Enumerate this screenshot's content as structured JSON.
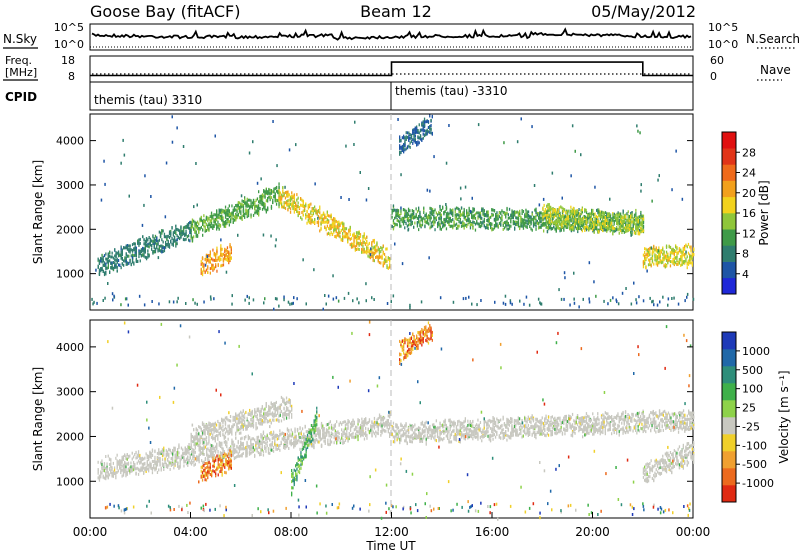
{
  "header": {
    "station": "Goose Bay (fitACF)",
    "beam": "Beam 12",
    "date": "05/May/2012"
  },
  "noise_panel": {
    "left_label": "N.Sky",
    "right_label": "N.Search",
    "left_ticks": [
      "10^5",
      "10^0"
    ],
    "right_ticks": [
      "10^5",
      "10^0"
    ]
  },
  "freq_panel": {
    "left_label_line1": "Freq.",
    "left_label_line2": "[MHz]",
    "right_label": "Nave",
    "left_ticks": [
      "18",
      "8"
    ],
    "right_ticks": [
      "60",
      "0"
    ],
    "nave_steps": [
      {
        "from": 0,
        "to": 12,
        "value": 15
      },
      {
        "from": 12,
        "to": 22,
        "value": 46
      },
      {
        "from": 22,
        "to": 24,
        "value": 15
      }
    ]
  },
  "cpid_panel": {
    "label": "CPID",
    "segments": [
      {
        "text": "themis (tau) 3310",
        "start_hour": 0
      },
      {
        "text": "themis (tau) -3310",
        "start_hour": 12
      }
    ]
  },
  "time_axis": {
    "label": "Time UT",
    "ticks": [
      "00:00",
      "04:00",
      "08:00",
      "12:00",
      "16:00",
      "20:00",
      "00:00"
    ]
  },
  "power_panel": {
    "ylabel": "Slant Range [km]",
    "yticks": [
      "1000",
      "2000",
      "3000",
      "4000"
    ],
    "colorbar_label": "Power [dB]",
    "colorbar_ticks": [
      "28",
      "24",
      "20",
      "16",
      "12",
      "8",
      "4"
    ],
    "colors": [
      "#1f28d8",
      "#1e55a6",
      "#2f7d6e",
      "#3f9a48",
      "#8fc63a",
      "#f2d21c",
      "#f2a01c",
      "#ef6a1b",
      "#e13418",
      "#e01010"
    ]
  },
  "velocity_panel": {
    "ylabel": "Slant Range [km]",
    "yticks": [
      "1000",
      "2000",
      "3000",
      "4000"
    ],
    "colorbar_label": "Velocity [m s⁻¹]",
    "colorbar_ticks": [
      "1000",
      "500",
      "100",
      "25",
      "-25",
      "-100",
      "-500",
      "-1000"
    ],
    "colors": [
      "#1e3ab8",
      "#2068a8",
      "#2e8e7a",
      "#3fb04a",
      "#8ed24a",
      "#c8c8c0",
      "#f0d02a",
      "#f0a030",
      "#ec6a1e",
      "#e02a12"
    ],
    "ground_scatter_color": "#c8c8c0"
  },
  "chart_data": [
    {
      "type": "heatmap",
      "name": "Power",
      "x_unit": "hours UT",
      "xlim": [
        0,
        24
      ],
      "ylabel": "Slant Range [km]",
      "ylim": [
        180,
        4600
      ],
      "colorbar": "Power [dB]",
      "clim": [
        0,
        32
      ],
      "bands": [
        {
          "x0": 0.3,
          "x1": 4.0,
          "y0": 1200,
          "y1": 2000,
          "p0": 6,
          "p1": 10
        },
        {
          "x0": 4.0,
          "x1": 7.5,
          "y0": 2000,
          "y1": 2800,
          "p0": 10,
          "p1": 14
        },
        {
          "x0": 7.5,
          "x1": 11.9,
          "y0": 2800,
          "y1": 1350,
          "p0": 14,
          "p1": 22
        },
        {
          "x0": 4.4,
          "x1": 5.6,
          "y0": 1200,
          "y1": 1500,
          "p0": 16,
          "p1": 24
        },
        {
          "x0": 12.0,
          "x1": 22.0,
          "y0": 2300,
          "y1": 2200,
          "p0": 8,
          "p1": 14
        },
        {
          "x0": 18.0,
          "x1": 22.0,
          "y0": 2350,
          "y1": 2100,
          "p0": 12,
          "p1": 18
        },
        {
          "x0": 22.0,
          "x1": 24.0,
          "y0": 1400,
          "y1": 1450,
          "p0": 14,
          "p1": 20
        },
        {
          "x0": 12.3,
          "x1": 13.6,
          "y0": 3900,
          "y1": 4400,
          "p0": 4,
          "p1": 8
        }
      ]
    },
    {
      "type": "heatmap",
      "name": "Velocity",
      "x_unit": "hours UT",
      "xlim": [
        0,
        24
      ],
      "ylabel": "Slant Range [km]",
      "ylim": [
        180,
        4600
      ],
      "colorbar": "Velocity [m s⁻¹]",
      "clim": [
        -1000,
        1000
      ],
      "bands": [
        {
          "x0": 0.3,
          "x1": 11.9,
          "y0": 1300,
          "y1": 2300,
          "v": 0
        },
        {
          "x0": 4.0,
          "x1": 8.0,
          "y0": 2000,
          "y1": 2700,
          "v": 0
        },
        {
          "x0": 4.4,
          "x1": 5.6,
          "y0": 1200,
          "y1": 1500,
          "v": -300
        },
        {
          "x0": 8.0,
          "x1": 9.0,
          "y0": 1000,
          "y1": 2400,
          "v": 150
        },
        {
          "x0": 12.0,
          "x1": 24.0,
          "y0": 2100,
          "y1": 2400,
          "v": 0
        },
        {
          "x0": 22.0,
          "x1": 24.0,
          "y0": 1200,
          "y1": 1700,
          "v": 0
        },
        {
          "x0": 12.3,
          "x1": 13.6,
          "y0": 3900,
          "y1": 4400,
          "v": -800
        }
      ]
    }
  ]
}
